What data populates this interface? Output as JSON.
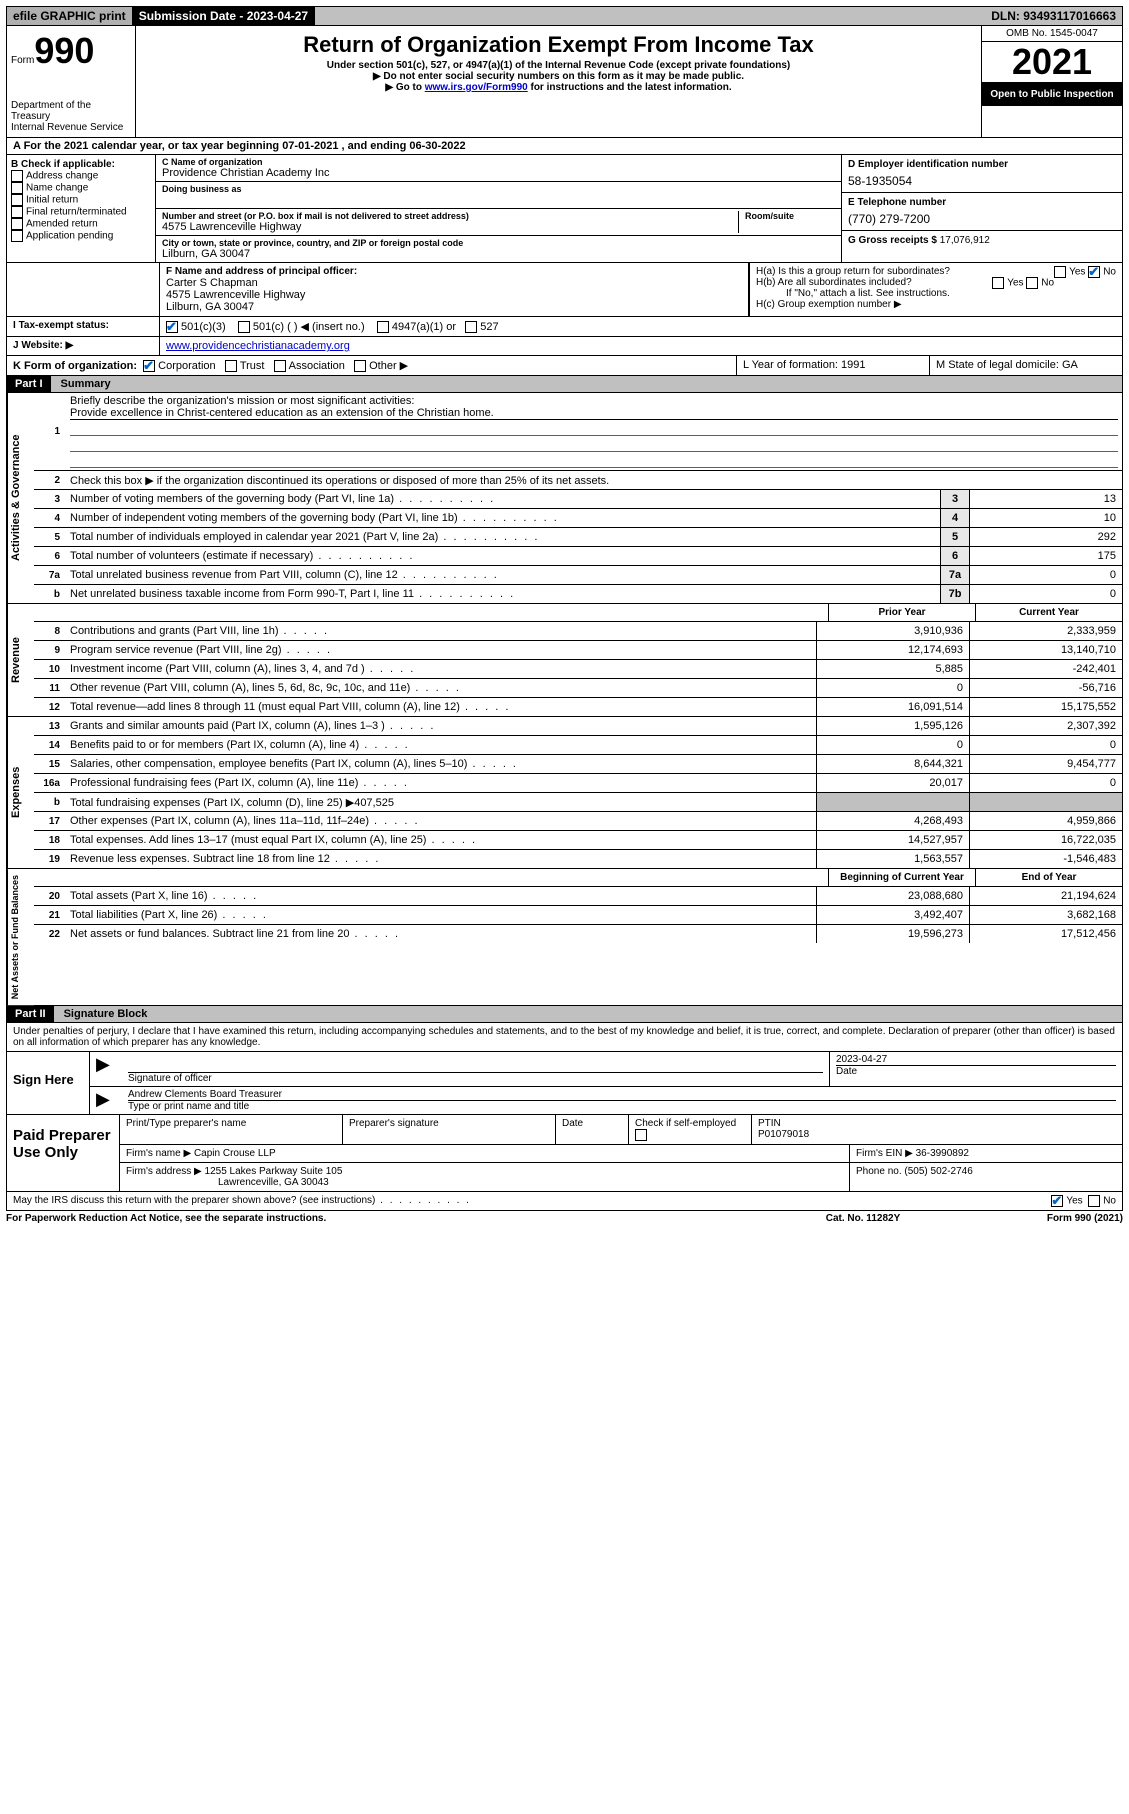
{
  "topbar": {
    "efile": "efile GRAPHIC print",
    "submission_label": "Submission Date - 2023-04-27",
    "dln": "DLN: 93493117016663"
  },
  "header": {
    "form_label": "Form",
    "form_number": "990",
    "title": "Return of Organization Exempt From Income Tax",
    "subtitle": "Under section 501(c), 527, or 4947(a)(1) of the Internal Revenue Code (except private foundations)",
    "note1": "▶ Do not enter social security numbers on this form as it may be made public.",
    "note2_pre": "▶ Go to ",
    "note2_link": "www.irs.gov/Form990",
    "note2_post": " for instructions and the latest information.",
    "dept": "Department of the Treasury",
    "irs": "Internal Revenue Service",
    "omb": "OMB No. 1545-0047",
    "year": "2021",
    "open": "Open to Public Inspection"
  },
  "row_a": "A For the 2021 calendar year, or tax year beginning 07-01-2021   , and ending 06-30-2022",
  "section_b": {
    "title": "B Check if applicable:",
    "items": [
      "Address change",
      "Name change",
      "Initial return",
      "Final return/terminated",
      "Amended return",
      "Application pending"
    ]
  },
  "section_c": {
    "name_lbl": "C Name of organization",
    "name": "Providence Christian Academy Inc",
    "dba_lbl": "Doing business as",
    "addr_lbl": "Number and street (or P.O. box if mail is not delivered to street address)",
    "room_lbl": "Room/suite",
    "addr": "4575 Lawrenceville Highway",
    "city_lbl": "City or town, state or province, country, and ZIP or foreign postal code",
    "city": "Lilburn, GA   30047"
  },
  "section_d": {
    "ein_lbl": "D Employer identification number",
    "ein": "58-1935054",
    "phone_lbl": "E Telephone number",
    "phone": "(770) 279-7200",
    "gross_lbl": "G Gross receipts $",
    "gross": "17,076,912"
  },
  "row_f": {
    "lbl": "F Name and address of principal officer:",
    "name": "Carter S Chapman",
    "addr1": "4575 Lawrenceville Highway",
    "addr2": "Lilburn, GA   30047"
  },
  "row_h": {
    "ha": "H(a)  Is this a group return for subordinates?",
    "hb": "H(b)  Are all subordinates included?",
    "note": "If \"No,\" attach a list. See instructions.",
    "hc": "H(c)  Group exemption number ▶",
    "yes": "Yes",
    "no": "No"
  },
  "row_i": {
    "lbl": "Tax-exempt status:",
    "opts": [
      "501(c)(3)",
      "501(c) (  ) ◀ (insert no.)",
      "4947(a)(1) or",
      "527"
    ]
  },
  "row_j": {
    "lbl": "Website: ▶",
    "val": "www.providencechristianacademy.org"
  },
  "row_k": {
    "lbl": "K Form of organization:",
    "opts": [
      "Corporation",
      "Trust",
      "Association",
      "Other ▶"
    ]
  },
  "row_lm": {
    "l": "L Year of formation: 1991",
    "m": "M State of legal domicile: GA"
  },
  "part1": {
    "header": "Part I",
    "title": "Summary"
  },
  "gov": {
    "side": "Activities & Governance",
    "l1": "Briefly describe the organization's mission or most significant activities:",
    "l1_val": "Provide excellence in Christ-centered education as an extension of the Christian home.",
    "l2": "Check this box ▶        if the organization discontinued its operations or disposed of more than 25% of its net assets.",
    "rows": [
      {
        "n": "3",
        "d": "Number of voting members of the governing body (Part VI, line 1a)",
        "v": "13"
      },
      {
        "n": "4",
        "d": "Number of independent voting members of the governing body (Part VI, line 1b)",
        "v": "10"
      },
      {
        "n": "5",
        "d": "Total number of individuals employed in calendar year 2021 (Part V, line 2a)",
        "v": "292"
      },
      {
        "n": "6",
        "d": "Total number of volunteers (estimate if necessary)",
        "v": "175"
      },
      {
        "n": "7a",
        "d": "Total unrelated business revenue from Part VIII, column (C), line 12",
        "v": "0"
      },
      {
        "n": "b",
        "d": "Net unrelated business taxable income from Form 990-T, Part I, line 11",
        "box": "7b",
        "v": "0"
      }
    ]
  },
  "rev": {
    "side": "Revenue",
    "hdr_prior": "Prior Year",
    "hdr_curr": "Current Year",
    "rows": [
      {
        "n": "8",
        "d": "Contributions and grants (Part VIII, line 1h)",
        "p": "3,910,936",
        "c": "2,333,959"
      },
      {
        "n": "9",
        "d": "Program service revenue (Part VIII, line 2g)",
        "p": "12,174,693",
        "c": "13,140,710"
      },
      {
        "n": "10",
        "d": "Investment income (Part VIII, column (A), lines 3, 4, and 7d )",
        "p": "5,885",
        "c": "-242,401"
      },
      {
        "n": "11",
        "d": "Other revenue (Part VIII, column (A), lines 5, 6d, 8c, 9c, 10c, and 11e)",
        "p": "0",
        "c": "-56,716"
      },
      {
        "n": "12",
        "d": "Total revenue—add lines 8 through 11 (must equal Part VIII, column (A), line 12)",
        "p": "16,091,514",
        "c": "15,175,552"
      }
    ]
  },
  "exp": {
    "side": "Expenses",
    "rows": [
      {
        "n": "13",
        "d": "Grants and similar amounts paid (Part IX, column (A), lines 1–3 )",
        "p": "1,595,126",
        "c": "2,307,392"
      },
      {
        "n": "14",
        "d": "Benefits paid to or for members (Part IX, column (A), line 4)",
        "p": "0",
        "c": "0"
      },
      {
        "n": "15",
        "d": "Salaries, other compensation, employee benefits (Part IX, column (A), lines 5–10)",
        "p": "8,644,321",
        "c": "9,454,777"
      },
      {
        "n": "16a",
        "d": "Professional fundraising fees (Part IX, column (A), line 11e)",
        "p": "20,017",
        "c": "0"
      },
      {
        "n": "b",
        "d": "Total fundraising expenses (Part IX, column (D), line 25) ▶407,525",
        "shaded": true
      },
      {
        "n": "17",
        "d": "Other expenses (Part IX, column (A), lines 11a–11d, 11f–24e)",
        "p": "4,268,493",
        "c": "4,959,866"
      },
      {
        "n": "18",
        "d": "Total expenses. Add lines 13–17 (must equal Part IX, column (A), line 25)",
        "p": "14,527,957",
        "c": "16,722,035"
      },
      {
        "n": "19",
        "d": "Revenue less expenses. Subtract line 18 from line 12",
        "p": "1,563,557",
        "c": "-1,546,483"
      }
    ]
  },
  "net": {
    "side": "Net Assets or Fund Balances",
    "hdr_begin": "Beginning of Current Year",
    "hdr_end": "End of Year",
    "rows": [
      {
        "n": "20",
        "d": "Total assets (Part X, line 16)",
        "p": "23,088,680",
        "c": "21,194,624"
      },
      {
        "n": "21",
        "d": "Total liabilities (Part X, line 26)",
        "p": "3,492,407",
        "c": "3,682,168"
      },
      {
        "n": "22",
        "d": "Net assets or fund balances. Subtract line 21 from line 20",
        "p": "19,596,273",
        "c": "17,512,456"
      }
    ]
  },
  "part2": {
    "header": "Part II",
    "title": "Signature Block",
    "penalty": "Under penalties of perjury, I declare that I have examined this return, including accompanying schedules and statements, and to the best of my knowledge and belief, it is true, correct, and complete. Declaration of preparer (other than officer) is based on all information of which preparer has any knowledge."
  },
  "sign": {
    "left": "Sign Here",
    "sig_lbl": "Signature of officer",
    "date_lbl": "Date",
    "date": "2023-04-27",
    "name": "Andrew Clements Board Treasurer",
    "name_lbl": "Type or print name and title"
  },
  "prep": {
    "left": "Paid Preparer Use Only",
    "hdr": [
      "Print/Type preparer's name",
      "Preparer's signature",
      "Date",
      "",
      "PTIN"
    ],
    "check_lbl": "Check        if self-employed",
    "ptin": "P01079018",
    "firm_lbl": "Firm's name    ▶",
    "firm": "Capin Crouse LLP",
    "ein_lbl": "Firm's EIN ▶",
    "ein": "36-3990892",
    "addr_lbl": "Firm's address ▶",
    "addr1": "1255 Lakes Parkway Suite 105",
    "addr2": "Lawrenceville, GA   30043",
    "phone_lbl": "Phone no.",
    "phone": "(505) 502-2746"
  },
  "footer": {
    "discuss": "May the IRS discuss this return with the preparer shown above? (see instructions)",
    "yes": "Yes",
    "no": "No",
    "paperwork": "For Paperwork Reduction Act Notice, see the separate instructions.",
    "cat": "Cat. No. 11282Y",
    "form": "Form 990 (2021)"
  }
}
